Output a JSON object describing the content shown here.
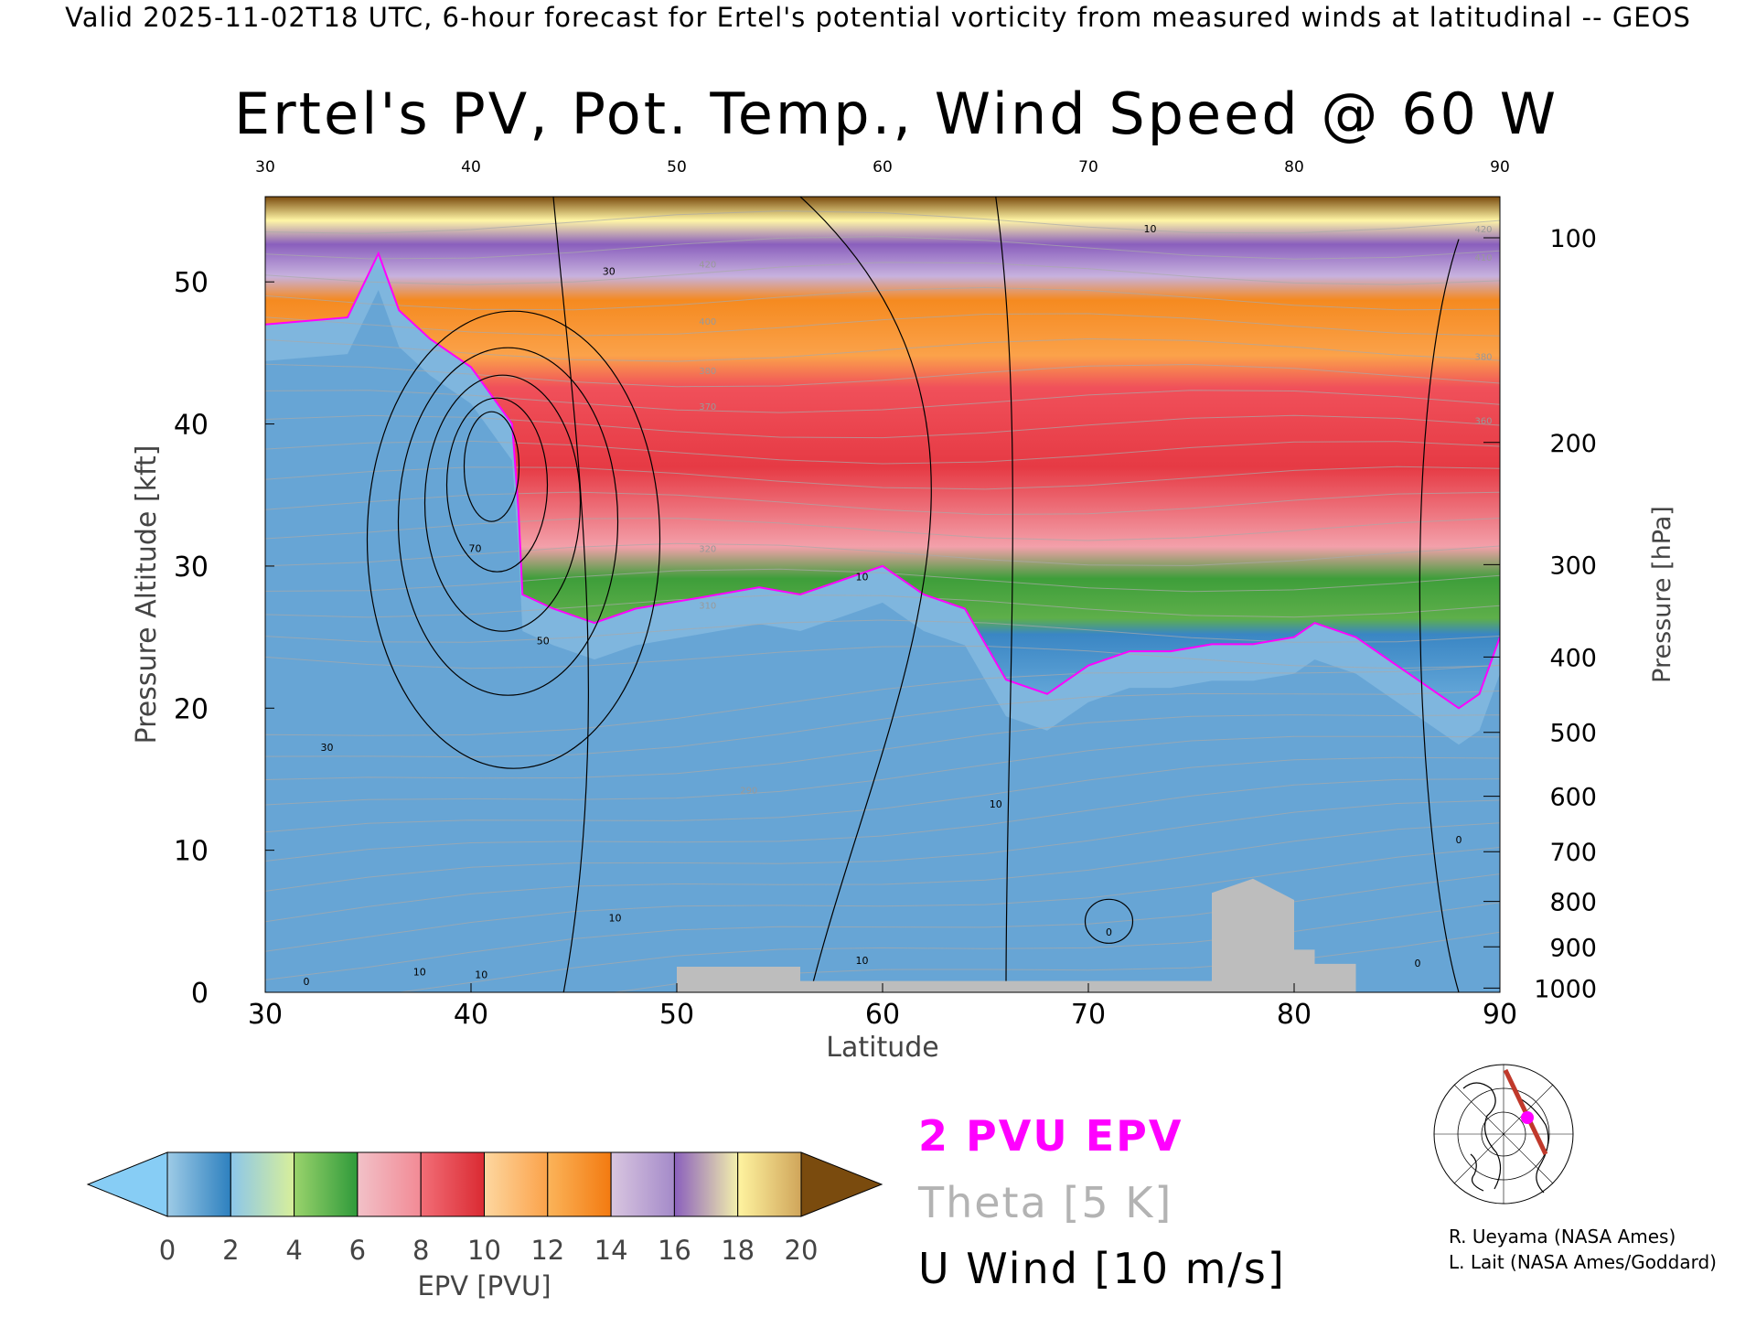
{
  "header": "Valid 2025-11-02T18 UTC, 6-hour forecast for Ertel's potential vorticity from measured winds at latitudinal -- GEOS",
  "title": "Ertel's PV, Pot. Temp., Wind Speed @ 60 W",
  "legend_keys": {
    "epv": "2 PVU EPV",
    "theta": "Theta [5 K]",
    "uwind": "U Wind [10 m/s]"
  },
  "credits": [
    "R. Ueyama (NASA Ames)",
    "L. Lait (NASA Ames/Goddard)"
  ],
  "colors": {
    "epv_contour": "#ff00ff",
    "theta": "#aaaaaa",
    "wind": "#000000",
    "ground": "#bdbdbd"
  },
  "chart_data": {
    "type": "heatmap",
    "title": "Ertel's PV, Pot. Temp., Wind Speed @ 60 W",
    "xlabel": "Latitude",
    "ylabel": "Pressure Altitude [kft]",
    "y2label": "Pressure [hPa]",
    "xlim": [
      30,
      90
    ],
    "ylim": [
      0,
      56
    ],
    "x_ticks": [
      30,
      40,
      50,
      60,
      70,
      80,
      90
    ],
    "y_ticks": [
      0,
      10,
      20,
      30,
      40,
      50
    ],
    "pressure_ticks": [
      {
        "label": "100",
        "kft": 53.1
      },
      {
        "label": "200",
        "kft": 38.7
      },
      {
        "label": "300",
        "kft": 30.1
      },
      {
        "label": "400",
        "kft": 23.6
      },
      {
        "label": "500",
        "kft": 18.3
      },
      {
        "label": "600",
        "kft": 13.8
      },
      {
        "label": "700",
        "kft": 9.9
      },
      {
        "label": "800",
        "kft": 6.4
      },
      {
        "label": "900",
        "kft": 3.2
      },
      {
        "label": "1000",
        "kft": 0.3
      }
    ],
    "tropopause_2pvu": [
      [
        30,
        47
      ],
      [
        34,
        47.5
      ],
      [
        35.5,
        52
      ],
      [
        36.5,
        48
      ],
      [
        38,
        46
      ],
      [
        40,
        44
      ],
      [
        42,
        40
      ],
      [
        42.3,
        34
      ],
      [
        42.5,
        28
      ],
      [
        44,
        27
      ],
      [
        46,
        26
      ],
      [
        48,
        27
      ],
      [
        50,
        27.5
      ],
      [
        52,
        28
      ],
      [
        54,
        28.5
      ],
      [
        56,
        28
      ],
      [
        58,
        29
      ],
      [
        60,
        30
      ],
      [
        62,
        28
      ],
      [
        64,
        27
      ],
      [
        66,
        22
      ],
      [
        68,
        21
      ],
      [
        70,
        23
      ],
      [
        72,
        24
      ],
      [
        74,
        24
      ],
      [
        76,
        24.5
      ],
      [
        78,
        24.5
      ],
      [
        80,
        25
      ],
      [
        81,
        26
      ],
      [
        83,
        25
      ],
      [
        85,
        23
      ],
      [
        86,
        22
      ],
      [
        87,
        21
      ],
      [
        88,
        20
      ],
      [
        89,
        21
      ],
      [
        90,
        25
      ]
    ],
    "wind_contour_labels": [
      {
        "text": "70",
        "lat": 40.2,
        "kft": 31
      },
      {
        "text": "50",
        "lat": 43.5,
        "kft": 24.5
      },
      {
        "text": "30",
        "lat": 33,
        "kft": 17
      },
      {
        "text": "30",
        "lat": 46.7,
        "kft": 50.5
      },
      {
        "text": "10",
        "lat": 65.5,
        "kft": 13
      },
      {
        "text": "10",
        "lat": 59,
        "kft": 2
      },
      {
        "text": "10",
        "lat": 37.5,
        "kft": 1.2
      },
      {
        "text": "10",
        "lat": 40.5,
        "kft": 1
      },
      {
        "text": "10",
        "lat": 47,
        "kft": 5
      },
      {
        "text": "10",
        "lat": 59,
        "kft": 29
      },
      {
        "text": "10",
        "lat": 73,
        "kft": 53.5
      },
      {
        "text": "0",
        "lat": 71,
        "kft": 4
      },
      {
        "text": "0",
        "lat": 32,
        "kft": 0.5
      },
      {
        "text": "0",
        "lat": 88,
        "kft": 10.5
      },
      {
        "text": "0",
        "lat": 86,
        "kft": 1.8
      }
    ],
    "theta_labels": [
      {
        "text": "420",
        "lat": 51.5,
        "kft": 51
      },
      {
        "text": "400",
        "lat": 51.5,
        "kft": 47
      },
      {
        "text": "380",
        "lat": 51.5,
        "kft": 43.5
      },
      {
        "text": "370",
        "lat": 51.5,
        "kft": 41
      },
      {
        "text": "320",
        "lat": 51.5,
        "kft": 31
      },
      {
        "text": "310",
        "lat": 51.5,
        "kft": 27
      },
      {
        "text": "290",
        "lat": 53.5,
        "kft": 14
      },
      {
        "text": "420",
        "lat": 89.2,
        "kft": 53.5
      },
      {
        "text": "410",
        "lat": 89.2,
        "kft": 51.5
      },
      {
        "text": "380",
        "lat": 89.2,
        "kft": 44.5
      },
      {
        "text": "360",
        "lat": 89.2,
        "kft": 40
      }
    ],
    "colorbar": {
      "label": "EPV [PVU]",
      "ticks": [
        "0",
        "2",
        "4",
        "6",
        "8",
        "10",
        "12",
        "14",
        "16",
        "18",
        "20"
      ],
      "under_color": "#87cdf5",
      "over_color": "#7a4b0e",
      "bands": [
        {
          "from": 0,
          "to": 2,
          "stops": [
            "#9ecbe6",
            "#2d80bf"
          ]
        },
        {
          "from": 2,
          "to": 4,
          "stops": [
            "#8cc6ea",
            "#d8ef9a"
          ]
        },
        {
          "from": 4,
          "to": 6,
          "stops": [
            "#9ad36c",
            "#2f9a3a"
          ]
        },
        {
          "from": 6,
          "to": 8,
          "stops": [
            "#f2c1c8",
            "#f28a95"
          ]
        },
        {
          "from": 8,
          "to": 10,
          "stops": [
            "#f26e77",
            "#da2a32"
          ]
        },
        {
          "from": 10,
          "to": 12,
          "stops": [
            "#fdd7a0",
            "#fba24a"
          ]
        },
        {
          "from": 12,
          "to": 14,
          "stops": [
            "#fbb45a",
            "#f37a10"
          ]
        },
        {
          "from": 14,
          "to": 16,
          "stops": [
            "#d9c6e0",
            "#a48ac9"
          ]
        },
        {
          "from": 16,
          "to": 18,
          "stops": [
            "#8a5fbd",
            "#f3f0ac"
          ]
        },
        {
          "from": 18,
          "to": 20,
          "stops": [
            "#fff4a0",
            "#d0a55a"
          ]
        }
      ]
    }
  }
}
